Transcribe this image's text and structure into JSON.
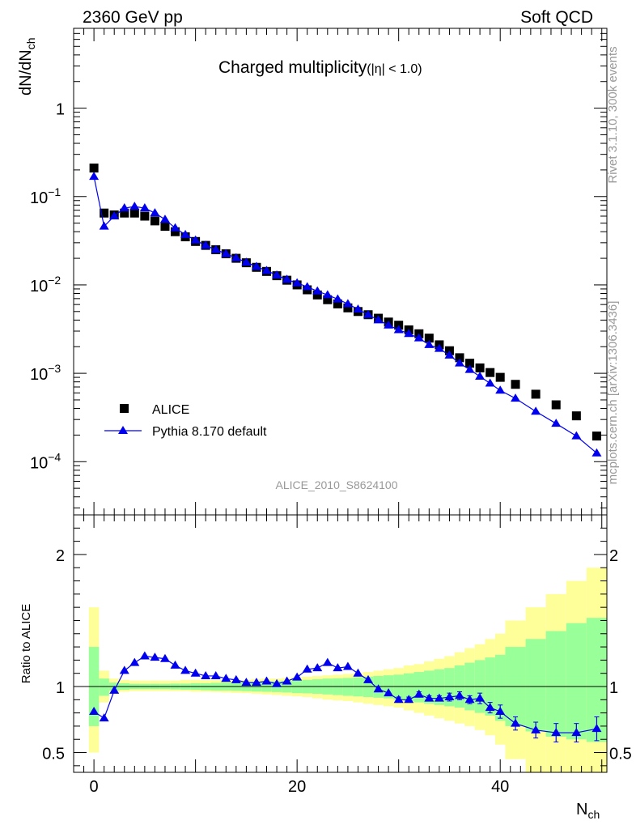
{
  "header": {
    "left": "2360 GeV pp",
    "right": "Soft QCD"
  },
  "side_labels": {
    "rivet": "Rivet 3.1.10,  300k events",
    "mcplots": "mcplots.cern.ch [arXiv:1306.3436]"
  },
  "chart_data": [
    {
      "type": "scatter",
      "title": "Charged multiplicity",
      "title_suffix": "(|η| < 1.0)",
      "ylabel": "dN/dN_ch",
      "yscale": "log",
      "ylim": [
        2.5e-05,
        8
      ],
      "xlim": [
        -2,
        50.5
      ],
      "yticks": [
        {
          "value": 1,
          "label": "1"
        },
        {
          "value": 0.1,
          "label": "10",
          "exp": "−1"
        },
        {
          "value": 0.01,
          "label": "10",
          "exp": "−2"
        },
        {
          "value": 0.001,
          "label": "10",
          "exp": "−3"
        },
        {
          "value": 0.0001,
          "label": "10",
          "exp": "−4"
        }
      ],
      "reference_label": "ALICE_2010_S8624100",
      "legend": {
        "position": "bottom-left",
        "entries": [
          "ALICE",
          "Pythia 8.170 default"
        ]
      },
      "series": [
        {
          "name": "ALICE",
          "marker": "square",
          "color": "#000000",
          "x": [
            0,
            1,
            2,
            3,
            4,
            5,
            6,
            7,
            8,
            9,
            10,
            11,
            12,
            13,
            14,
            15,
            16,
            17,
            18,
            19,
            20,
            21,
            22,
            23,
            24,
            25,
            26,
            27,
            28,
            29,
            30,
            31,
            32,
            33,
            34,
            35,
            36,
            37,
            38,
            39,
            40,
            41.5,
            43.5,
            45.5,
            47.5,
            49.5
          ],
          "values": [
            0.21,
            0.065,
            0.062,
            0.065,
            0.065,
            0.06,
            0.053,
            0.046,
            0.04,
            0.035,
            0.031,
            0.028,
            0.025,
            0.0225,
            0.02,
            0.0178,
            0.0158,
            0.0142,
            0.0127,
            0.0113,
            0.01,
            0.0088,
            0.0077,
            0.0068,
            0.0061,
            0.0055,
            0.005,
            0.0046,
            0.0042,
            0.0038,
            0.0035,
            0.0031,
            0.0028,
            0.0025,
            0.0021,
            0.0018,
            0.0015,
            0.0013,
            0.00115,
            0.00102,
            0.0009,
            0.00075,
            0.00058,
            0.00044,
            0.00033,
            0.000195
          ]
        },
        {
          "name": "Pythia 8.170 default",
          "marker": "triangle",
          "color": "#0000ee",
          "x": [
            0,
            1,
            2,
            3,
            4,
            5,
            6,
            7,
            8,
            9,
            10,
            11,
            12,
            13,
            14,
            15,
            16,
            17,
            18,
            19,
            20,
            21,
            22,
            23,
            24,
            25,
            26,
            27,
            28,
            29,
            30,
            31,
            32,
            33,
            34,
            35,
            36,
            37,
            38,
            39,
            40,
            41.5,
            43.5,
            45.5,
            47.5,
            49.5
          ],
          "values": [
            0.168,
            0.046,
            0.06,
            0.074,
            0.077,
            0.074,
            0.065,
            0.055,
            0.044,
            0.037,
            0.032,
            0.028,
            0.025,
            0.0225,
            0.0202,
            0.018,
            0.0161,
            0.0145,
            0.0129,
            0.0115,
            0.0105,
            0.0095,
            0.0085,
            0.0077,
            0.0069,
            0.0061,
            0.0053,
            0.0046,
            0.004,
            0.0035,
            0.0031,
            0.0028,
            0.0025,
            0.0021,
            0.0019,
            0.0016,
            0.0013,
            0.0011,
            0.00092,
            0.00077,
            0.00064,
            0.00052,
            0.00037,
            0.00027,
            0.000195,
            0.000125
          ]
        }
      ]
    },
    {
      "type": "line",
      "ylabel": "Ratio to ALICE",
      "xlabel": "N_ch",
      "ylim": [
        0.35,
        2.3
      ],
      "xlim": [
        -2,
        50.5
      ],
      "yticks": [
        {
          "value": 0.5,
          "label": "0.5"
        },
        {
          "value": 1,
          "label": "1"
        },
        {
          "value": 2,
          "label": "2"
        }
      ],
      "xticks": [
        {
          "value": 0,
          "label": "0"
        },
        {
          "value": 20,
          "label": "20"
        },
        {
          "value": 40,
          "label": "40"
        }
      ],
      "reference_line": 1,
      "bands": {
        "edges": [
          -0.5,
          0.5,
          1.5,
          2.5,
          3.5,
          4.5,
          5.5,
          6.5,
          7.5,
          8.5,
          9.5,
          10.5,
          11.5,
          12.5,
          13.5,
          14.5,
          15.5,
          16.5,
          17.5,
          18.5,
          19.5,
          20.5,
          21.5,
          22.5,
          23.5,
          24.5,
          25.5,
          26.5,
          27.5,
          28.5,
          29.5,
          30.5,
          31.5,
          32.5,
          33.5,
          34.5,
          35.5,
          36.5,
          37.5,
          38.5,
          39.5,
          40.5,
          42.5,
          44.5,
          46.5,
          48.5,
          50.5
        ],
        "yellow_lower": [
          0.5,
          0.88,
          0.95,
          0.96,
          0.965,
          0.965,
          0.965,
          0.965,
          0.965,
          0.965,
          0.96,
          0.96,
          0.958,
          0.955,
          0.952,
          0.95,
          0.945,
          0.94,
          0.935,
          0.93,
          0.925,
          0.92,
          0.91,
          0.9,
          0.895,
          0.89,
          0.88,
          0.87,
          0.86,
          0.85,
          0.84,
          0.82,
          0.8,
          0.78,
          0.76,
          0.74,
          0.72,
          0.7,
          0.67,
          0.63,
          0.56,
          0.45,
          0.35,
          0.35,
          0.35,
          0.35
        ],
        "yellow_upper": [
          1.6,
          1.12,
          1.06,
          1.05,
          1.045,
          1.045,
          1.045,
          1.045,
          1.045,
          1.05,
          1.05,
          1.05,
          1.05,
          1.05,
          1.05,
          1.05,
          1.055,
          1.06,
          1.06,
          1.065,
          1.07,
          1.075,
          1.08,
          1.085,
          1.09,
          1.095,
          1.1,
          1.11,
          1.12,
          1.13,
          1.14,
          1.16,
          1.17,
          1.19,
          1.21,
          1.23,
          1.26,
          1.29,
          1.32,
          1.36,
          1.4,
          1.5,
          1.6,
          1.7,
          1.8,
          1.9
        ],
        "green_lower": [
          0.7,
          0.93,
          0.97,
          0.975,
          0.98,
          0.98,
          0.98,
          0.98,
          0.978,
          0.976,
          0.975,
          0.972,
          0.97,
          0.97,
          0.968,
          0.965,
          0.962,
          0.96,
          0.958,
          0.955,
          0.95,
          0.948,
          0.945,
          0.94,
          0.935,
          0.93,
          0.925,
          0.92,
          0.915,
          0.91,
          0.9,
          0.89,
          0.88,
          0.87,
          0.86,
          0.85,
          0.84,
          0.82,
          0.8,
          0.78,
          0.74,
          0.7,
          0.66,
          0.62,
          0.6,
          0.58
        ],
        "green_upper": [
          1.3,
          1.06,
          1.03,
          1.025,
          1.02,
          1.02,
          1.02,
          1.02,
          1.022,
          1.022,
          1.025,
          1.025,
          1.028,
          1.03,
          1.03,
          1.032,
          1.035,
          1.038,
          1.04,
          1.042,
          1.045,
          1.05,
          1.055,
          1.06,
          1.062,
          1.065,
          1.07,
          1.075,
          1.08,
          1.085,
          1.09,
          1.1,
          1.11,
          1.12,
          1.13,
          1.14,
          1.16,
          1.18,
          1.2,
          1.22,
          1.24,
          1.3,
          1.36,
          1.42,
          1.48,
          1.52
        ]
      },
      "series": [
        {
          "name": "Pythia 8.170 default / ALICE",
          "marker": "triangle",
          "color": "#0000ee",
          "x": [
            0,
            1,
            2,
            3,
            4,
            5,
            6,
            7,
            8,
            9,
            10,
            11,
            12,
            13,
            14,
            15,
            16,
            17,
            18,
            19,
            20,
            21,
            22,
            23,
            24,
            25,
            26,
            27,
            28,
            29,
            30,
            31,
            32,
            33,
            34,
            35,
            36,
            37,
            38,
            39,
            40,
            41.5,
            43.5,
            45.5,
            47.5,
            49.5
          ],
          "values": [
            0.81,
            0.76,
            0.97,
            1.12,
            1.18,
            1.23,
            1.22,
            1.21,
            1.16,
            1.12,
            1.1,
            1.08,
            1.08,
            1.06,
            1.05,
            1.03,
            1.03,
            1.04,
            1.02,
            1.04,
            1.07,
            1.13,
            1.14,
            1.18,
            1.14,
            1.15,
            1.1,
            1.05,
            0.98,
            0.95,
            0.9,
            0.9,
            0.94,
            0.91,
            0.91,
            0.92,
            0.93,
            0.9,
            0.91,
            0.84,
            0.81,
            0.72,
            0.67,
            0.65,
            0.65,
            0.68
          ],
          "errors": [
            0,
            0,
            0,
            0,
            0,
            0,
            0,
            0,
            0,
            0,
            0,
            0,
            0,
            0,
            0,
            0,
            0,
            0,
            0,
            0,
            0,
            0,
            0,
            0,
            0,
            0,
            0,
            0,
            0,
            0,
            0.02,
            0.02,
            0.02,
            0.02,
            0.02,
            0.03,
            0.03,
            0.03,
            0.04,
            0.04,
            0.05,
            0.05,
            0.06,
            0.07,
            0.07,
            0.09
          ]
        }
      ]
    }
  ]
}
